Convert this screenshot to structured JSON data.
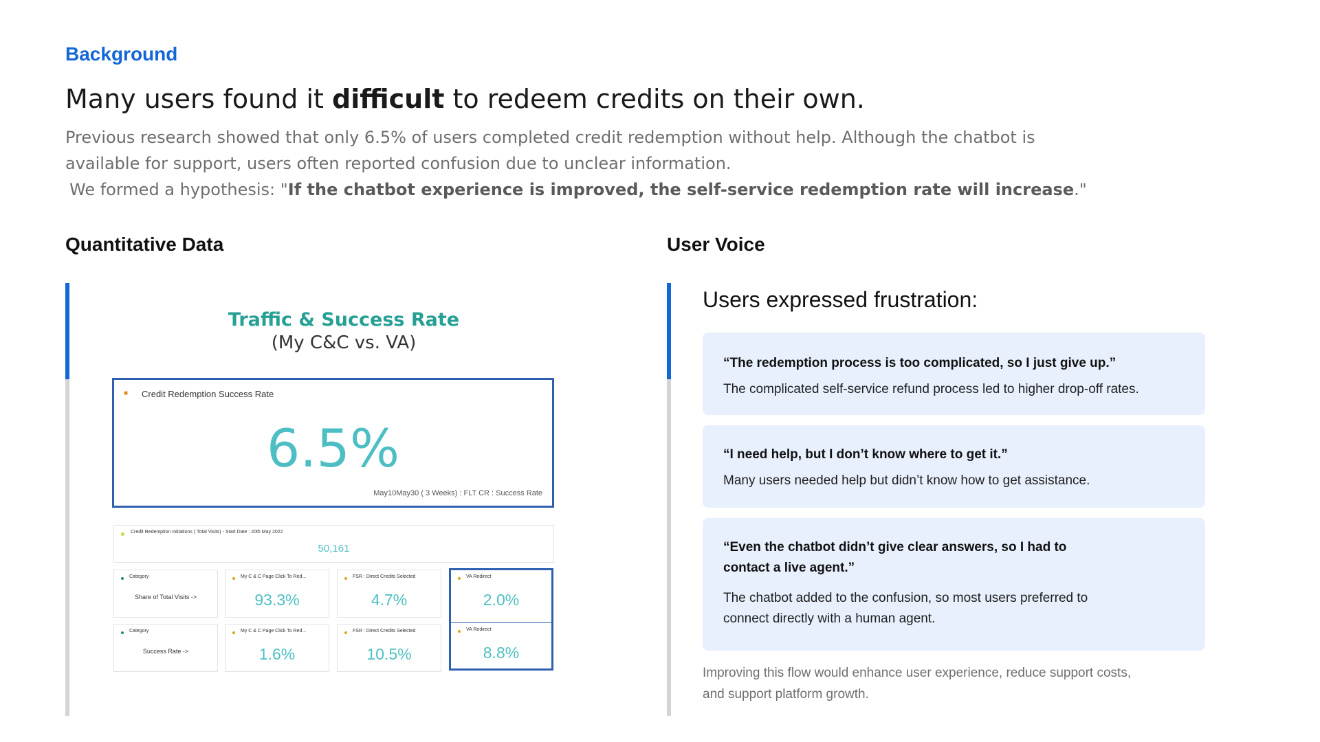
{
  "background_label": "Background",
  "headline": {
    "pre": "Many users found it ",
    "bold": "difficult",
    "post": " to redeem credits on their own."
  },
  "intro": {
    "line1": "Previous research showed that only 6.5% of users completed credit redemption without help. Although the chatbot is",
    "line2": "available for support, users often reported confusion due to unclear information.",
    "hyp_pre": "We formed a hypothesis: \"",
    "hyp_bold": "If the chatbot experience is improved, the self-service redemption rate will increase",
    "hyp_post": ".\""
  },
  "left": {
    "title": "Quantitative Data",
    "dashboard": {
      "title": "Traffic & Success Rate",
      "subtitle": "(My C&C vs. VA)",
      "kpi_title": "Credit Redemption Success Rate",
      "kpi_value": "6.5%",
      "kpi_note": "May10May30 ( 3 Weeks) : FLT CR : Success Rate",
      "initiations_title": "Credit Redemption Initiations ( Total Visits) - Start Date : 20th May 2022",
      "initiations_value": "50,161",
      "rows": [
        {
          "category_head": "Category",
          "category_label": "Share of Total Visits ->",
          "c1_head": "My C & C Page Click To Red...",
          "c1_value": "93.3%",
          "c2_head": "FSR : Direct Credits Selected",
          "c2_value": "4.7%",
          "c3_head": "VA Redirect",
          "c3_value": "2.0%"
        },
        {
          "category_head": "Category",
          "category_label": "Success Rate ->",
          "c1_head": "My C & C Page Click To Red...",
          "c1_value": "1.6%",
          "c2_head": "FSR : Direct Credits Selected",
          "c2_value": "10.5%",
          "c3_head": "VA Redirect",
          "c3_value": "8.8%"
        }
      ]
    }
  },
  "right": {
    "title": "User Voice",
    "heading": "Users expressed frustration:",
    "quotes": [
      {
        "quote": "“The redemption process is too complicated, so I just give up.”",
        "desc": "The complicated self-service refund process led to higher drop-off rates."
      },
      {
        "quote": "“I need help, but I don’t know where to get it.”",
        "desc": "Many users needed help but didn’t know how to get assistance."
      },
      {
        "quote_line1": "“Even the chatbot didn’t give clear answers, so I had to",
        "quote_line2": "contact a live agent.”",
        "desc_line1": "The chatbot added to the confusion, so most users preferred to",
        "desc_line2": "connect directly with a human agent."
      }
    ],
    "footnote_line1": "Improving this flow would enhance user experience, reduce support costs,",
    "footnote_line2": "and support platform growth."
  },
  "colors": {
    "accent_blue": "#1366d6",
    "teal": "#26a095",
    "kpi_value": "#4dbfc4",
    "card_bg": "#e8f0fd"
  }
}
